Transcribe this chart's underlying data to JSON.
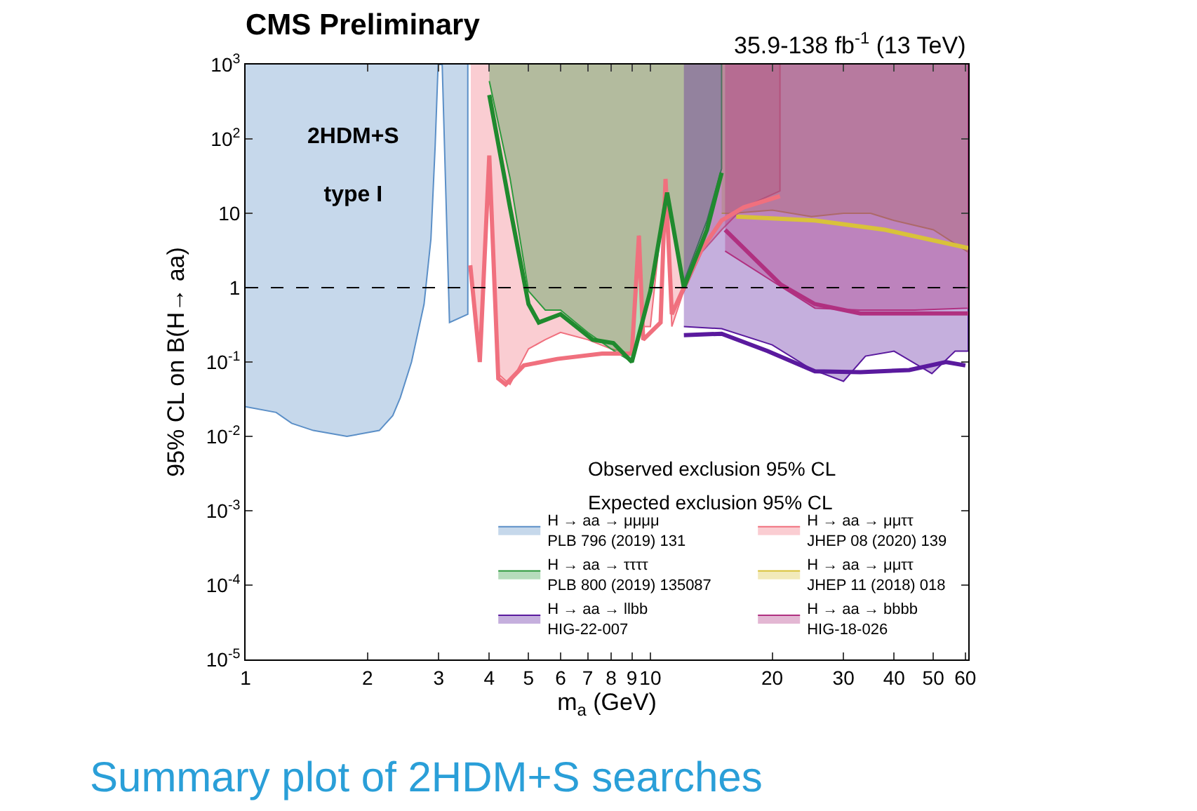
{
  "chart_data": {
    "type": "line",
    "title": "CMS Preliminary",
    "subtitle": "35.9-138 fb$^{-1}$ (13 TeV)",
    "xlabel": "m$_{a}$ (GeV)",
    "ylabel": "95% CL on B(H→ aa)",
    "log": "xy",
    "xlim": [
      1,
      61
    ],
    "ylim": [
      1e-05,
      1000
    ],
    "xticks": [
      1,
      2,
      3,
      4,
      5,
      6,
      7,
      8,
      9,
      10,
      20,
      30,
      40,
      50,
      60
    ],
    "yticks": [
      {
        "value": 1e-05,
        "label": "10$^{-5}$"
      },
      {
        "value": 0.0001,
        "label": "10$^{-4}$"
      },
      {
        "value": 0.001,
        "label": "10$^{-3}$"
      },
      {
        "value": 0.01,
        "label": "10$^{-2}$"
      },
      {
        "value": 0.1,
        "label": "10$^{-1}$"
      },
      1,
      10,
      {
        "value": 100,
        "label": "10$^{2}$"
      },
      {
        "value": 1000,
        "label": "10$^{3}$"
      }
    ],
    "legend": "bottom right",
    "marker": "none",
    "ref_lines": [
      {
        "axis": "y",
        "value": 1,
        "color": "#000000",
        "line_style": "dashed"
      }
    ],
    "annotations": [
      "2HDM+S\ntype I",
      "Observed exclusion 95% CL",
      "Expected exclusion 95% CL",
      "Summary plot of 2HDM+S searches"
    ],
    "series": [
      {
        "name": "H → aa → μμμμ\nPLB 796 (2019) 131",
        "type": "area",
        "color": "#5b8fc7",
        "x": [
          1,
          1.19,
          1.3,
          1.47,
          1.78,
          2.14,
          2.31,
          2.41,
          2.57,
          2.76,
          2.87,
          2.94,
          2.99,
          3.06,
          3.19,
          3.54
        ],
        "values": [
          0.025,
          0.021,
          0.015,
          0.012,
          0.01,
          0.012,
          0.019,
          0.033,
          0.1,
          0.6,
          4.5,
          80,
          1000,
          1000,
          0.34,
          0.44
        ]
      },
      {
        "name": "H → aa → μμττ\nJHEP 08 (2020) 139",
        "type": "area",
        "color": "#f0707e",
        "x": [
          3.6,
          3.8,
          4.0,
          4.2,
          4.5,
          5,
          5.5,
          6,
          7,
          8,
          9,
          9.4,
          9.6,
          10,
          10.9,
          11.3,
          12,
          13.4,
          15,
          17,
          20.9
        ],
        "values": [
          1.5,
          0.12,
          50,
          0.07,
          0.05,
          0.15,
          0.2,
          0.25,
          0.2,
          0.15,
          0.13,
          5,
          0.3,
          0.3,
          25,
          0.3,
          0.8,
          3,
          6,
          12,
          20
        ]
      },
      {
        "name": "H → aa → ττττ\nPLB 800 (2019) 135087",
        "type": "area",
        "color": "#2e9a3e",
        "x": [
          4.0,
          4.5,
          5,
          5.5,
          6,
          7,
          8,
          9,
          10,
          11,
          12.1,
          13.8,
          15
        ],
        "values": [
          600,
          30,
          0.9,
          0.5,
          0.5,
          0.25,
          0.15,
          0.1,
          0.8,
          20,
          1.2,
          8,
          40
        ]
      },
      {
        "name": "H → aa → μμττ\nJHEP 11 (2018) 018",
        "type": "area",
        "color": "#d9c23a",
        "x": [
          15,
          16,
          20,
          25,
          30,
          35,
          40,
          50,
          61
        ],
        "values": [
          10,
          10,
          11,
          9,
          10,
          10,
          8,
          6,
          3
        ]
      },
      {
        "name": "H → aa → llbb\nHIG-22-007",
        "type": "area",
        "color": "#5a1a9e",
        "x": [
          12.1,
          15,
          20,
          25,
          30,
          34,
          40,
          49.6,
          56.6,
          61
        ],
        "values": [
          0.3,
          0.28,
          0.17,
          0.08,
          0.055,
          0.12,
          0.14,
          0.07,
          0.14,
          0.14
        ]
      },
      {
        "name": "H → aa → bbbb\nHIG-18-026",
        "type": "area",
        "color": "#b03080",
        "x": [
          15.3,
          21.2,
          25.5,
          33,
          45,
          61
        ],
        "values": [
          3.1,
          1,
          0.53,
          0.5,
          0.5,
          0.53
        ]
      },
      {
        "color": "#f0707e",
        "x": [
          3.59,
          3.79,
          4.0,
          4.21,
          4.39,
          4.87,
          5.89,
          7.6,
          9.0,
          9.37,
          9.6,
          10.6,
          10.9,
          11.3,
          12.1,
          13.4,
          15,
          17,
          20.9
        ],
        "values": [
          2,
          0.1,
          60,
          0.06,
          0.05,
          0.09,
          0.11,
          0.13,
          0.13,
          5,
          0.2,
          0.34,
          29,
          0.44,
          1,
          3.3,
          8,
          12,
          17
        ]
      },
      {
        "color": "#1f8a2e",
        "x": [
          4.0,
          4.5,
          5.0,
          5.3,
          6.0,
          7.2,
          8.1,
          9.0,
          10,
          11,
          12.1,
          13.8,
          15
        ],
        "values": [
          390,
          12,
          0.6,
          0.34,
          0.44,
          0.2,
          0.18,
          0.1,
          0.9,
          19,
          1,
          6,
          35
        ]
      },
      {
        "color": "#d9c23a",
        "x": [
          16.3,
          25.5,
          38,
          61
        ],
        "values": [
          9,
          8,
          6,
          3.4
        ]
      },
      {
        "color": "#5a1a9e",
        "x": [
          12.1,
          15,
          19.5,
          25.5,
          33,
          43.6,
          53.7,
          60
        ],
        "values": [
          0.23,
          0.24,
          0.14,
          0.075,
          0.073,
          0.078,
          0.1,
          0.09
        ]
      },
      {
        "color": "#b03080",
        "x": [
          15.3,
          21,
          25.5,
          33,
          45,
          61
        ],
        "values": [
          6,
          1.1,
          0.6,
          0.45,
          0.45,
          0.45
        ]
      }
    ]
  }
}
